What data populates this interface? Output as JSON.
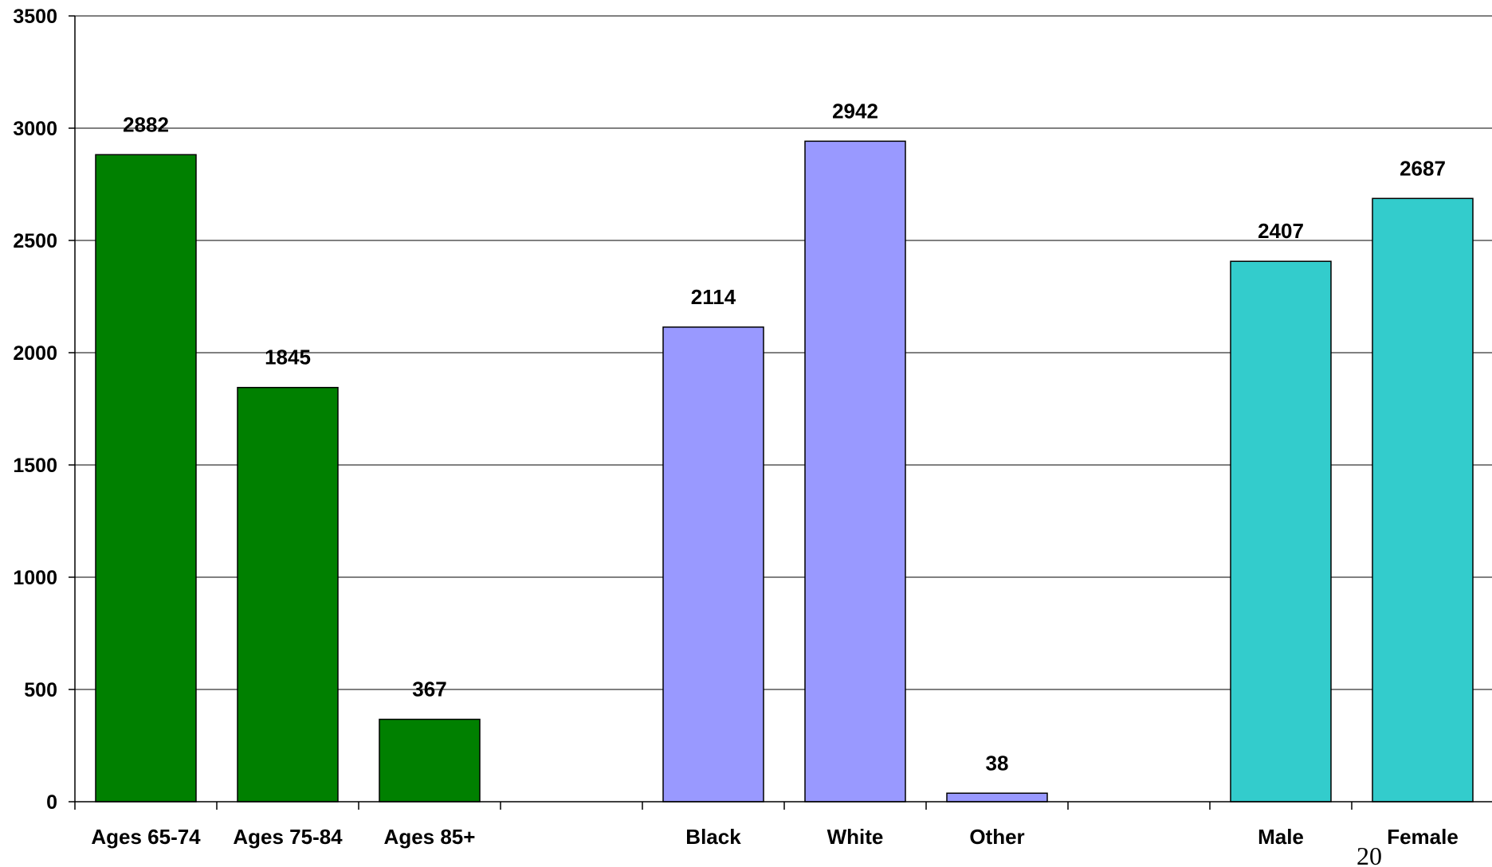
{
  "chart_data": {
    "type": "bar",
    "categories": [
      "Ages 65-74",
      "Ages 75-84",
      "Ages 85+",
      "",
      "Black",
      "White",
      "Other",
      "",
      "Male",
      "Female"
    ],
    "series": [
      {
        "values": [
          2882,
          1845,
          367,
          null,
          2114,
          2942,
          38,
          null,
          2407,
          2687
        ],
        "colors": [
          "#008000",
          "#008000",
          "#008000",
          null,
          "#9999FF",
          "#9999FF",
          "#9999FF",
          null,
          "#33CCCC",
          "#33CCCC"
        ]
      }
    ],
    "data_labels": [
      "2882",
      "1845",
      "367",
      "",
      "2114",
      "2942",
      "38",
      "",
      "2407",
      "2687"
    ],
    "ylim": [
      0,
      3500
    ],
    "yticks": [
      0,
      500,
      1000,
      1500,
      2000,
      2500,
      3000,
      3500
    ],
    "ytick_labels": [
      "0",
      "500",
      "1000",
      "1500",
      "2000",
      "2500",
      "3000",
      "3500"
    ],
    "grid": true,
    "title": "",
    "xlabel": "",
    "ylabel": ""
  },
  "page_number": "20"
}
